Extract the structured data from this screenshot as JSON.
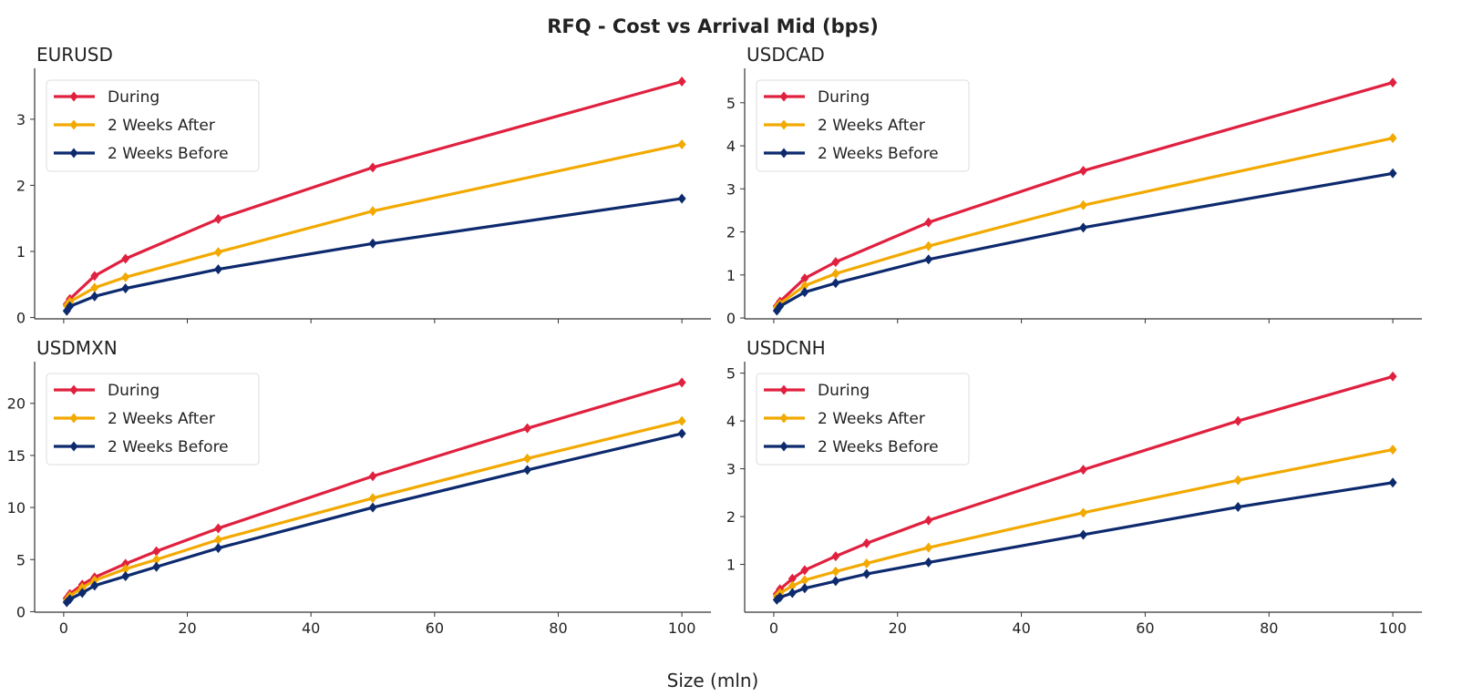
{
  "figure": {
    "title": "RFQ - Cost vs Arrival Mid (bps)",
    "xlabel": "Size (mln)"
  },
  "colors": {
    "During": "#e0203f",
    "2 Weeks After": "#f2a900",
    "2 Weeks Before": "#0d2a6e"
  },
  "chart_data": [
    {
      "type": "line",
      "title": "EURUSD",
      "xlim": [
        -4.7,
        104.7
      ],
      "ylim": [
        -0.02,
        3.77
      ],
      "yticks": [
        0,
        1,
        2,
        3
      ],
      "xticks": [
        0,
        20,
        40,
        60,
        80,
        100
      ],
      "show_xticklabels": false,
      "legend": "top-left",
      "grid": false,
      "x": [
        0.5,
        1,
        5,
        10,
        25,
        50,
        100
      ],
      "series": [
        {
          "name": "During",
          "values": [
            0.2,
            0.28,
            0.63,
            0.89,
            1.49,
            2.27,
            3.57
          ]
        },
        {
          "name": "2 Weeks After",
          "values": [
            0.18,
            0.24,
            0.45,
            0.61,
            0.99,
            1.61,
            2.62
          ]
        },
        {
          "name": "2 Weeks Before",
          "values": [
            0.1,
            0.17,
            0.32,
            0.44,
            0.73,
            1.12,
            1.8
          ]
        }
      ]
    },
    {
      "type": "line",
      "title": "USDCAD",
      "xlim": [
        -4.7,
        104.7
      ],
      "ylim": [
        -0.02,
        5.8
      ],
      "yticks": [
        0,
        1,
        2,
        3,
        4,
        5
      ],
      "xticks": [
        0,
        20,
        40,
        60,
        80,
        100
      ],
      "show_xticklabels": false,
      "legend": "top-left",
      "grid": false,
      "x": [
        0.5,
        1,
        5,
        10,
        25,
        50,
        100
      ],
      "series": [
        {
          "name": "During",
          "values": [
            0.28,
            0.38,
            0.92,
            1.3,
            2.22,
            3.42,
            5.47
          ]
        },
        {
          "name": "2 Weeks After",
          "values": [
            0.25,
            0.33,
            0.75,
            1.03,
            1.67,
            2.62,
            4.18
          ]
        },
        {
          "name": "2 Weeks Before",
          "values": [
            0.17,
            0.27,
            0.6,
            0.81,
            1.36,
            2.1,
            3.36
          ]
        }
      ]
    },
    {
      "type": "line",
      "title": "USDMXN",
      "xlim": [
        -4.7,
        104.7
      ],
      "ylim": [
        -0.05,
        24.0
      ],
      "yticks": [
        0,
        5,
        10,
        15,
        20
      ],
      "xticks": [
        0,
        20,
        40,
        60,
        80,
        100
      ],
      "show_xticklabels": true,
      "legend": "top-left",
      "grid": false,
      "x": [
        0.5,
        1,
        3,
        5,
        10,
        15,
        25,
        50,
        75,
        100
      ],
      "series": [
        {
          "name": "During",
          "values": [
            1.3,
            1.7,
            2.6,
            3.3,
            4.6,
            5.8,
            8.0,
            13.0,
            17.6,
            22.0
          ]
        },
        {
          "name": "2 Weeks After",
          "values": [
            1.1,
            1.5,
            2.3,
            3.0,
            4.1,
            5.0,
            6.9,
            10.9,
            14.7,
            18.3
          ]
        },
        {
          "name": "2 Weeks Before",
          "values": [
            0.9,
            1.2,
            1.8,
            2.5,
            3.4,
            4.3,
            6.1,
            10.0,
            13.6,
            17.1
          ]
        }
      ]
    },
    {
      "type": "line",
      "title": "USDCNH",
      "xlim": [
        -4.7,
        104.7
      ],
      "ylim": [
        0.0,
        5.24
      ],
      "yticks": [
        1,
        2,
        3,
        4,
        5
      ],
      "xticks": [
        0,
        20,
        40,
        60,
        80,
        100
      ],
      "show_xticklabels": true,
      "legend": "top-left",
      "grid": false,
      "x": [
        0.5,
        1,
        3,
        5,
        10,
        15,
        25,
        50,
        75,
        100
      ],
      "series": [
        {
          "name": "During",
          "values": [
            0.38,
            0.48,
            0.7,
            0.88,
            1.17,
            1.44,
            1.92,
            2.98,
            4.0,
            4.93
          ]
        },
        {
          "name": "2 Weeks After",
          "values": [
            0.33,
            0.4,
            0.55,
            0.67,
            0.85,
            1.02,
            1.35,
            2.08,
            2.76,
            3.4
          ]
        },
        {
          "name": "2 Weeks Before",
          "values": [
            0.26,
            0.31,
            0.4,
            0.5,
            0.65,
            0.8,
            1.04,
            1.62,
            2.2,
            2.71
          ]
        }
      ]
    }
  ]
}
